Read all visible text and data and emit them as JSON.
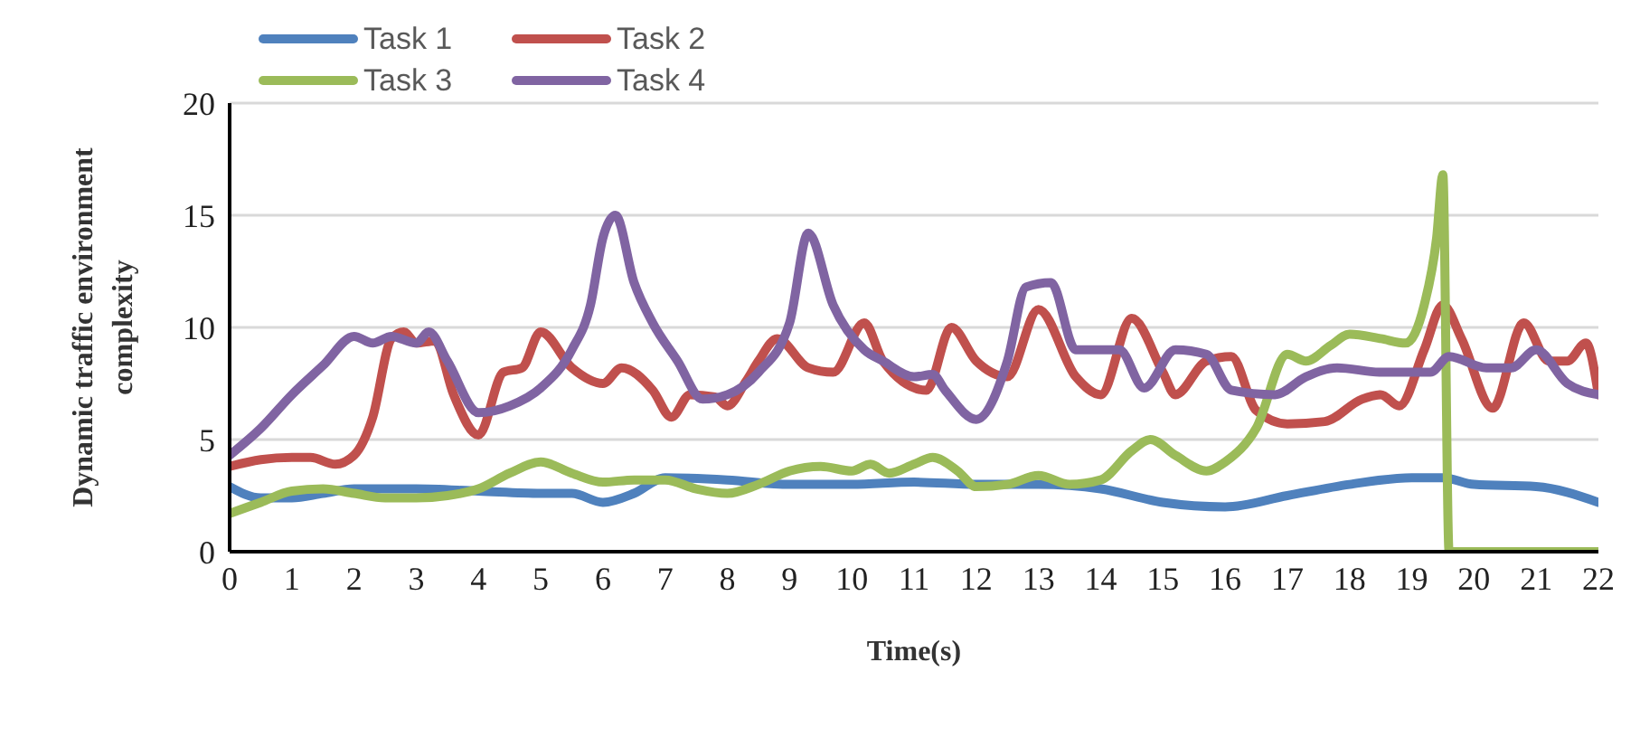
{
  "chart_data": {
    "type": "line",
    "xlabel": "Time(s)",
    "ylabel": "Dynamic traffic environment complexity",
    "xlim": [
      0,
      22
    ],
    "xticks": [
      0,
      1,
      2,
      3,
      4,
      5,
      6,
      7,
      8,
      9,
      10,
      11,
      12,
      13,
      14,
      15,
      16,
      17,
      18,
      19,
      20,
      21,
      22
    ],
    "ylim": [
      0,
      20
    ],
    "yticks": [
      0,
      5,
      10,
      15,
      20
    ],
    "grid": "y",
    "legend": "top left",
    "marker": "none",
    "line_style": "solid",
    "series": [
      {
        "name": "Task 1",
        "color": "#4f81bd",
        "x": [
          0,
          0.5,
          1,
          1.5,
          2,
          3,
          4,
          5,
          5.5,
          6,
          6.5,
          7,
          8,
          9,
          10,
          11,
          12,
          13,
          14,
          15,
          16,
          17,
          18,
          19,
          19.5,
          20,
          21,
          22
        ],
        "values": [
          2.9,
          2.4,
          2.4,
          2.6,
          2.8,
          2.8,
          2.7,
          2.6,
          2.6,
          2.2,
          2.6,
          3.3,
          3.2,
          3.0,
          3.0,
          3.1,
          3.0,
          3.0,
          2.8,
          2.2,
          2.0,
          2.5,
          3.0,
          3.3,
          3.3,
          3.0,
          2.9,
          2.2
        ]
      },
      {
        "name": "Task 2",
        "color": "#c0504d",
        "x": [
          0,
          0.5,
          1,
          1.3,
          1.7,
          2,
          2.3,
          2.6,
          2.8,
          3,
          3.3,
          3.6,
          4,
          4.4,
          4.7,
          5,
          5.5,
          6,
          6.3,
          6.8,
          7.1,
          7.4,
          7.8,
          8,
          8.3,
          8.5,
          8.8,
          9.3,
          9.7,
          10.2,
          10.5,
          11.2,
          11.6,
          12,
          12.5,
          13,
          13.6,
          14,
          14.5,
          15,
          15.2,
          15.7,
          16.1,
          16.5,
          17,
          17.6,
          18.2,
          18.5,
          18.8,
          19.2,
          19.5,
          19.8,
          20.3,
          20.8,
          21.2,
          21.5,
          21.8,
          22
        ],
        "values": [
          3.8,
          4.1,
          4.2,
          4.2,
          3.9,
          4.3,
          6,
          9.5,
          9.8,
          9.3,
          9.4,
          7,
          5.2,
          8,
          8.2,
          9.8,
          8.2,
          7.5,
          8.2,
          7.2,
          6,
          7,
          6.9,
          6.5,
          7.6,
          8.5,
          9.5,
          8.2,
          8,
          10.2,
          8.5,
          7.2,
          10,
          8.5,
          7.8,
          10.8,
          7.8,
          7,
          10.4,
          8,
          7,
          8.5,
          8.7,
          6.3,
          5.7,
          5.8,
          6.8,
          7,
          6.5,
          9,
          11,
          9.5,
          6.4,
          10.2,
          8.5,
          8.5,
          9.3,
          7
        ]
      },
      {
        "name": "Task 3",
        "color": "#9bbb59",
        "x": [
          0,
          0.5,
          1,
          1.5,
          2,
          2.5,
          3,
          3.5,
          4,
          4.5,
          5,
          5.5,
          6,
          6.5,
          7,
          7.5,
          8,
          8.5,
          9,
          9.5,
          10,
          10.3,
          10.6,
          11,
          11.3,
          11.7,
          12,
          12.5,
          13,
          13.5,
          14,
          14.5,
          14.8,
          15.2,
          15.7,
          16,
          16.5,
          17,
          17.3,
          17.7,
          18,
          18.5,
          18.9,
          19.2,
          19.4,
          19.5,
          19.6,
          22
        ],
        "values": [
          1.7,
          2.2,
          2.7,
          2.8,
          2.6,
          2.4,
          2.4,
          2.5,
          2.8,
          3.5,
          4,
          3.5,
          3.1,
          3.2,
          3.2,
          2.8,
          2.6,
          3,
          3.6,
          3.8,
          3.6,
          3.9,
          3.5,
          3.9,
          4.2,
          3.6,
          2.9,
          3,
          3.4,
          3,
          3.2,
          4.5,
          5,
          4.3,
          3.6,
          4,
          5.5,
          8.8,
          8.5,
          9.2,
          9.7,
          9.5,
          9.3,
          11,
          14,
          16.8,
          0,
          0
        ]
      },
      {
        "name": "Task 4",
        "color": "#8064a2",
        "x": [
          0,
          0.5,
          1,
          1.5,
          2,
          2.3,
          2.6,
          3,
          3.2,
          3.5,
          4,
          4.5,
          5,
          5.5,
          5.8,
          6,
          6.2,
          6.5,
          6.8,
          7.2,
          7.6,
          8,
          8.5,
          9,
          9.3,
          9.7,
          10.2,
          10.5,
          11,
          11.3,
          11.5,
          12,
          12.5,
          12.8,
          13.2,
          13.6,
          14,
          14.3,
          14.7,
          15.2,
          15.7,
          16.1,
          16.8,
          17.3,
          17.8,
          18.5,
          19.3,
          19.6,
          20.2,
          20.6,
          21,
          21.5,
          22
        ],
        "values": [
          4.3,
          5.5,
          7,
          8.3,
          9.6,
          9.3,
          9.6,
          9.3,
          9.8,
          8.5,
          6.2,
          6.5,
          7.3,
          9,
          11,
          14,
          15,
          12,
          10.2,
          8.5,
          6.8,
          7,
          8,
          10.2,
          14.2,
          11,
          9,
          8.5,
          7.8,
          7.9,
          7.2,
          5.9,
          8.5,
          11.8,
          12,
          9,
          9,
          9,
          7.3,
          9,
          8.8,
          7.2,
          7,
          7.8,
          8.2,
          8,
          8,
          8.7,
          8.2,
          8.2,
          9,
          7.5,
          7
        ]
      }
    ]
  }
}
